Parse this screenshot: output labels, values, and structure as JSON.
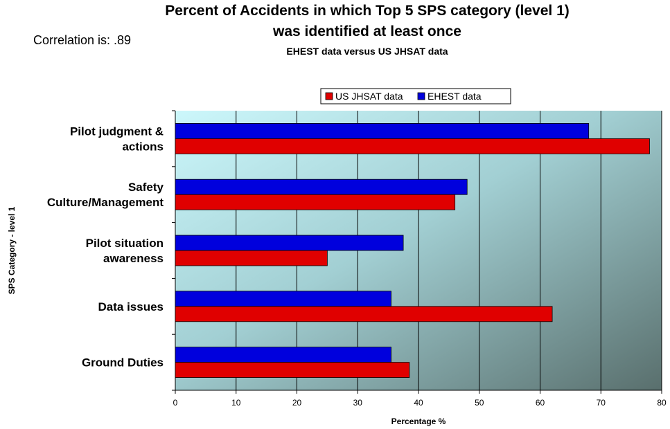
{
  "header": {
    "title_line1": "Percent of Accidents in which Top 5 SPS category (level 1)",
    "title_line2": "was identified at least once",
    "subtitle": "EHEST data versus US JHSAT data",
    "correlation": "Correlation is: .89"
  },
  "chart_data": {
    "type": "bar",
    "orientation": "horizontal",
    "title": "Percent of Accidents in which Top 5 SPS category (level 1) was identified at least once",
    "subtitle": "EHEST data versus US JHSAT data",
    "xlabel": "Percentage %",
    "ylabel": "SPS Category - level 1",
    "xlim": [
      0,
      80
    ],
    "xticks": [
      0,
      10,
      20,
      30,
      40,
      50,
      60,
      70,
      80
    ],
    "grid": true,
    "legend_position": "top",
    "categories": [
      [
        "Pilot judgment &",
        "actions"
      ],
      [
        "Safety",
        "Culture/Management"
      ],
      [
        "Pilot situation",
        "awareness"
      ],
      [
        "Data issues"
      ],
      [
        "Ground Duties"
      ]
    ],
    "series": [
      {
        "name": "US JHSAT data",
        "color": "#e00000",
        "values": [
          78,
          46,
          25,
          62,
          38.5
        ]
      },
      {
        "name": "EHEST data",
        "color": "#0000dd",
        "values": [
          68,
          48,
          37.5,
          35.5,
          35.5
        ]
      }
    ],
    "legend_order": [
      "US JHSAT data",
      "EHEST data"
    ]
  }
}
